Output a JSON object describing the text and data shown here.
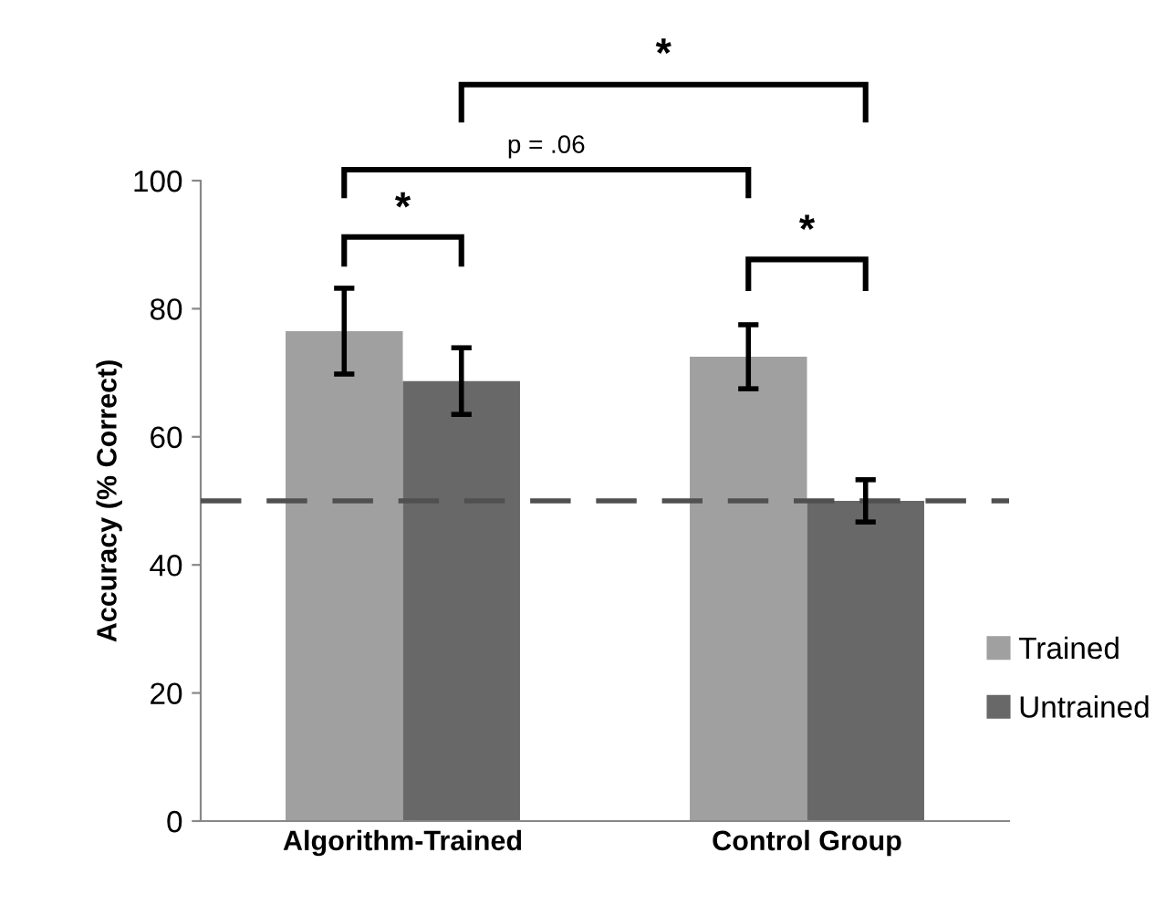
{
  "chart_data": {
    "type": "bar",
    "ylabel": "Accuracy (% Correct)",
    "categories": [
      "Algorithm-Trained",
      "Control Group"
    ],
    "series": [
      {
        "name": "Trained",
        "color": "#a0a0a0",
        "values": [
          76.5,
          72.5
        ],
        "errors": [
          6.7,
          5.0
        ]
      },
      {
        "name": "Untrained",
        "color": "#686868",
        "values": [
          68.7,
          50.0
        ],
        "errors": [
          5.2,
          3.3
        ]
      }
    ],
    "ylim": [
      0,
      100
    ],
    "yticks": [
      0,
      20,
      40,
      60,
      80,
      100
    ],
    "grid": false,
    "legend": "right",
    "ref_lines": [
      {
        "axis": "y",
        "value": 50,
        "color": "#505050",
        "line_style": "dashed"
      }
    ],
    "annotations": [
      "*",
      "p = .06",
      "*",
      "*"
    ]
  }
}
